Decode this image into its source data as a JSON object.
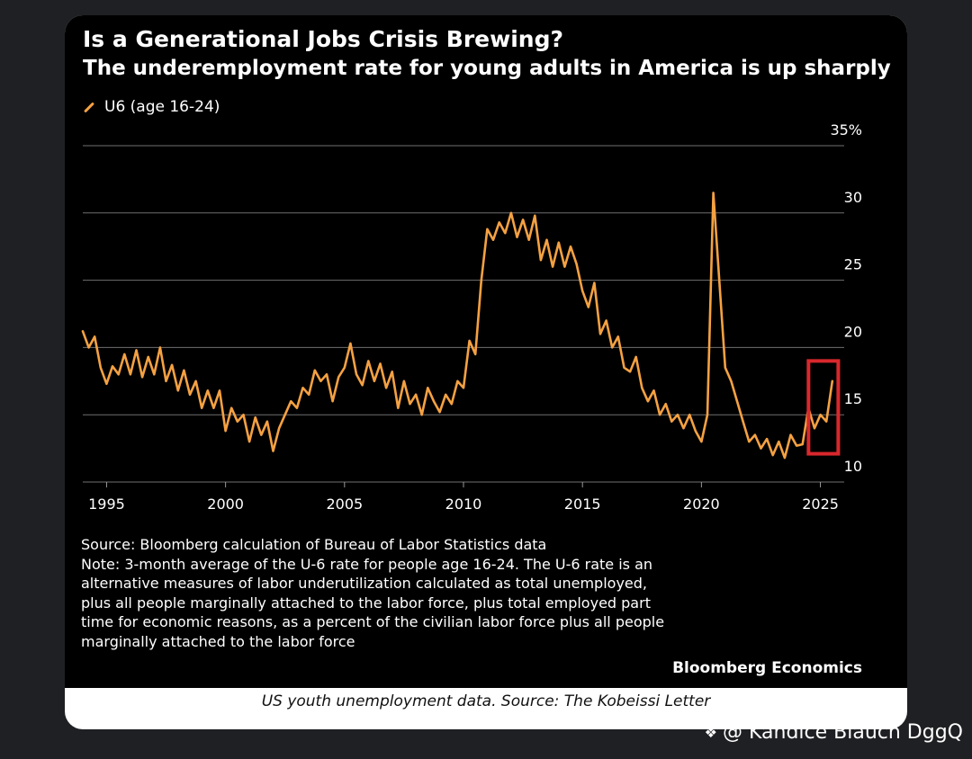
{
  "post": {
    "caption": "US youth unemployment data. Source: The Kobeissi Letter",
    "watermark": "@ Kandice Blauch DggQ",
    "watermark_icon": "binance-diamond-icon"
  },
  "chart_data": {
    "type": "line",
    "title": "Is a Generational Jobs Crisis Brewing?",
    "subtitle": "The underemployment rate for young adults in America is up sharply",
    "series": [
      {
        "name": "U6 (age 16-24)",
        "color": "#f5a142",
        "points": [
          [
            1994.0,
            21.2
          ],
          [
            1994.25,
            20.0
          ],
          [
            1994.5,
            20.8
          ],
          [
            1994.75,
            18.5
          ],
          [
            1995.0,
            17.3
          ],
          [
            1995.25,
            18.6
          ],
          [
            1995.5,
            18.0
          ],
          [
            1995.75,
            19.5
          ],
          [
            1996.0,
            18.0
          ],
          [
            1996.25,
            19.8
          ],
          [
            1996.5,
            17.8
          ],
          [
            1996.75,
            19.3
          ],
          [
            1997.0,
            18.0
          ],
          [
            1997.25,
            20.0
          ],
          [
            1997.5,
            17.5
          ],
          [
            1997.75,
            18.7
          ],
          [
            1998.0,
            16.8
          ],
          [
            1998.25,
            18.3
          ],
          [
            1998.5,
            16.5
          ],
          [
            1998.75,
            17.5
          ],
          [
            1999.0,
            15.5
          ],
          [
            1999.25,
            16.8
          ],
          [
            1999.5,
            15.5
          ],
          [
            1999.75,
            16.8
          ],
          [
            2000.0,
            13.8
          ],
          [
            2000.25,
            15.5
          ],
          [
            2000.5,
            14.5
          ],
          [
            2000.75,
            15.0
          ],
          [
            2001.0,
            13.0
          ],
          [
            2001.25,
            14.8
          ],
          [
            2001.5,
            13.5
          ],
          [
            2001.75,
            14.5
          ],
          [
            2002.0,
            12.3
          ],
          [
            2002.25,
            14.0
          ],
          [
            2002.5,
            15.0
          ],
          [
            2002.75,
            16.0
          ],
          [
            2003.0,
            15.5
          ],
          [
            2003.25,
            17.0
          ],
          [
            2003.5,
            16.5
          ],
          [
            2003.75,
            18.3
          ],
          [
            2004.0,
            17.5
          ],
          [
            2004.25,
            18.0
          ],
          [
            2004.5,
            16.0
          ],
          [
            2004.75,
            17.8
          ],
          [
            2005.0,
            18.5
          ],
          [
            2005.25,
            20.3
          ],
          [
            2005.5,
            18.0
          ],
          [
            2005.75,
            17.2
          ],
          [
            2006.0,
            19.0
          ],
          [
            2006.25,
            17.5
          ],
          [
            2006.5,
            18.8
          ],
          [
            2006.75,
            17.0
          ],
          [
            2007.0,
            18.2
          ],
          [
            2007.25,
            15.5
          ],
          [
            2007.5,
            17.5
          ],
          [
            2007.75,
            15.8
          ],
          [
            2008.0,
            16.5
          ],
          [
            2008.25,
            15.0
          ],
          [
            2008.5,
            17.0
          ],
          [
            2008.75,
            16.0
          ],
          [
            2009.0,
            15.2
          ],
          [
            2009.25,
            16.5
          ],
          [
            2009.5,
            15.8
          ],
          [
            2009.75,
            17.5
          ],
          [
            2010.0,
            17.0
          ],
          [
            2010.25,
            20.5
          ],
          [
            2010.5,
            19.5
          ],
          [
            2010.75,
            25.0
          ],
          [
            2011.0,
            28.8
          ],
          [
            2011.25,
            28.0
          ],
          [
            2011.5,
            29.3
          ],
          [
            2011.75,
            28.5
          ],
          [
            2012.0,
            30.0
          ],
          [
            2012.25,
            28.2
          ],
          [
            2012.5,
            29.5
          ],
          [
            2012.75,
            28.0
          ],
          [
            2013.0,
            29.8
          ],
          [
            2013.25,
            26.5
          ],
          [
            2013.5,
            28.0
          ],
          [
            2013.75,
            26.0
          ],
          [
            2014.0,
            27.8
          ],
          [
            2014.25,
            26.0
          ],
          [
            2014.5,
            27.5
          ],
          [
            2014.75,
            26.2
          ],
          [
            2015.0,
            24.2
          ],
          [
            2015.25,
            23.0
          ],
          [
            2015.5,
            24.8
          ],
          [
            2015.75,
            21.0
          ],
          [
            2016.0,
            22.0
          ],
          [
            2016.25,
            20.0
          ],
          [
            2016.5,
            20.8
          ],
          [
            2016.75,
            18.5
          ],
          [
            2017.0,
            18.2
          ],
          [
            2017.25,
            19.3
          ],
          [
            2017.5,
            17.0
          ],
          [
            2017.75,
            16.0
          ],
          [
            2018.0,
            16.8
          ],
          [
            2018.25,
            15.0
          ],
          [
            2018.5,
            15.8
          ],
          [
            2018.75,
            14.5
          ],
          [
            2019.0,
            15.0
          ],
          [
            2019.25,
            14.0
          ],
          [
            2019.5,
            15.0
          ],
          [
            2019.75,
            13.8
          ],
          [
            2020.0,
            13.0
          ],
          [
            2020.25,
            15.0
          ],
          [
            2020.5,
            31.5
          ],
          [
            2020.75,
            25.0
          ],
          [
            2021.0,
            18.5
          ],
          [
            2021.25,
            17.5
          ],
          [
            2021.5,
            16.0
          ],
          [
            2021.75,
            14.5
          ],
          [
            2022.0,
            13.0
          ],
          [
            2022.25,
            13.5
          ],
          [
            2022.5,
            12.5
          ],
          [
            2022.75,
            13.2
          ],
          [
            2023.0,
            12.0
          ],
          [
            2023.25,
            13.0
          ],
          [
            2023.5,
            11.8
          ],
          [
            2023.75,
            13.5
          ],
          [
            2024.0,
            12.7
          ],
          [
            2024.25,
            12.8
          ],
          [
            2024.5,
            15.5
          ],
          [
            2024.75,
            14.0
          ],
          [
            2025.0,
            15.0
          ],
          [
            2025.25,
            14.5
          ],
          [
            2025.5,
            17.5
          ]
        ]
      }
    ],
    "xlim": [
      1994,
      2026
    ],
    "ylim": [
      10,
      35
    ],
    "xticks": [
      1995,
      2000,
      2005,
      2010,
      2015,
      2020,
      2025
    ],
    "yticks": [
      10,
      15,
      20,
      25,
      30,
      35
    ],
    "ytick_labels": [
      "10",
      "15",
      "20",
      "25",
      "30",
      "35%"
    ],
    "grid": "horizontal",
    "highlight": {
      "x_range": [
        2024.5,
        2025.75
      ],
      "y_range": [
        12.1,
        19.0
      ],
      "color": "#d8282d"
    },
    "source": "Source: Bloomberg calculation of Bureau of Labor Statistics data",
    "note": "Note: 3-month average of the U-6 rate for people age 16-24. The U-6 rate is an alternative measures of labor underutilization calculated as total unemployed, plus all people marginally attached to the labor force, plus total employed part time for economic reasons, as a percent of the civilian labor force plus all people marginally attached to the labor force",
    "brand": "Bloomberg Economics"
  }
}
